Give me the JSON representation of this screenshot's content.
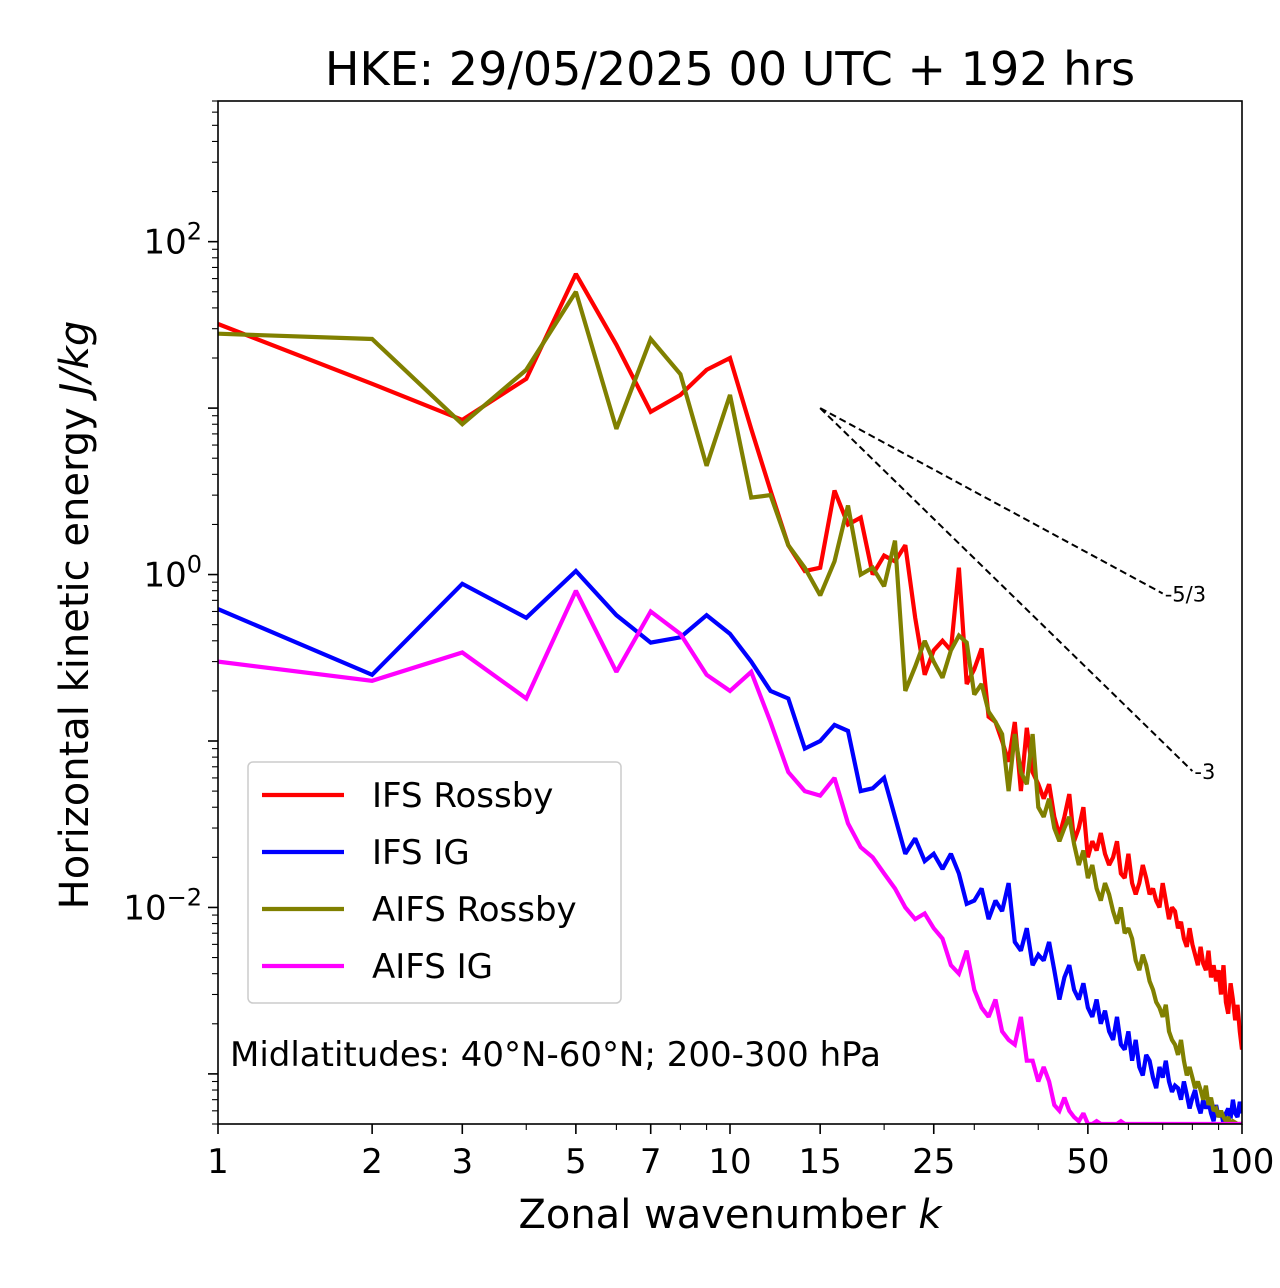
{
  "chart_data": {
    "type": "line",
    "title": "HKE: 29/05/2025 00 UTC + 192 hrs",
    "xlabel": "Zonal wavenumber",
    "xlabel_var": "k",
    "ylabel": "Horizontal kinetic energy",
    "ylabel_unit": "J/kg",
    "xscale": "log",
    "yscale": "log",
    "xlim": [
      1,
      100
    ],
    "ylim": [
      0.0005,
      700
    ],
    "x_ticks": [
      1,
      2,
      3,
      5,
      7,
      10,
      15,
      25,
      50,
      100
    ],
    "y_ticks": [
      {
        "value": 0.01,
        "base": "10",
        "exp": "−2"
      },
      {
        "value": 1,
        "base": "10",
        "exp": "0"
      },
      {
        "value": 100,
        "base": "10",
        "exp": "2"
      }
    ],
    "legend_position": "lower-left",
    "annotation": "Midlatitudes: 40°N-60°N; 200-300 hPa",
    "reference_slopes": [
      {
        "label": "-5/3",
        "x0": 15,
        "x1": 70,
        "y0": 10.0,
        "y1": 0.77,
        "style": "dashed"
      },
      {
        "label": "-3",
        "x0": 15,
        "x1": 80,
        "y0": 10.0,
        "y1": 0.066,
        "style": "dashed"
      }
    ],
    "series": [
      {
        "name": "IFS Rossby",
        "color": "#ff0000",
        "x": [
          1,
          2,
          3,
          4,
          5,
          6,
          7,
          8,
          9,
          10,
          11,
          12,
          13,
          14,
          15,
          16,
          17,
          18,
          19,
          20,
          21,
          22,
          23,
          24,
          25,
          26,
          27,
          28,
          29,
          30,
          31,
          32,
          33,
          34,
          35,
          36,
          37,
          38,
          39,
          40,
          41,
          42,
          43,
          44,
          45,
          46,
          47,
          48,
          49,
          50,
          51,
          52,
          53,
          54,
          55,
          56,
          57,
          58,
          59,
          60,
          61,
          62,
          63,
          64,
          65,
          66,
          67,
          68,
          69,
          70,
          71,
          72,
          73,
          74,
          75,
          76,
          77,
          78,
          79,
          80,
          81,
          82,
          83,
          84,
          85,
          86,
          87,
          88,
          89,
          90,
          91,
          92,
          93,
          94,
          95,
          96,
          97,
          98,
          99,
          100
        ],
        "y": [
          32,
          14,
          8.5,
          15,
          64,
          24,
          9.5,
          12,
          17,
          20,
          7.5,
          3.2,
          1.5,
          1.05,
          1.1,
          3.2,
          2.0,
          2.2,
          1.0,
          1.3,
          1.2,
          1.5,
          0.55,
          0.25,
          0.35,
          0.4,
          0.35,
          1.1,
          0.22,
          0.27,
          0.36,
          0.14,
          0.13,
          0.1,
          0.075,
          0.13,
          0.05,
          0.12,
          0.065,
          0.055,
          0.045,
          0.055,
          0.035,
          0.027,
          0.035,
          0.048,
          0.025,
          0.03,
          0.04,
          0.02,
          0.025,
          0.022,
          0.028,
          0.021,
          0.018,
          0.02,
          0.025,
          0.016,
          0.015,
          0.021,
          0.014,
          0.012,
          0.014,
          0.018,
          0.015,
          0.012,
          0.013,
          0.011,
          0.01,
          0.014,
          0.011,
          0.0085,
          0.01,
          0.0095,
          0.0075,
          0.0082,
          0.0065,
          0.0058,
          0.0075,
          0.006,
          0.0052,
          0.0045,
          0.0058,
          0.0046,
          0.0042,
          0.0055,
          0.0038,
          0.0045,
          0.0036,
          0.0042,
          0.003,
          0.0045,
          0.0027,
          0.0023,
          0.0035,
          0.0028,
          0.0021,
          0.0026,
          0.0018,
          0.0014
        ]
      },
      {
        "name": "IFS IG",
        "color": "#0000ff",
        "x": [
          1,
          2,
          3,
          4,
          5,
          6,
          7,
          8,
          9,
          10,
          11,
          12,
          13,
          14,
          15,
          16,
          17,
          18,
          19,
          20,
          21,
          22,
          23,
          24,
          25,
          26,
          27,
          28,
          29,
          30,
          31,
          32,
          33,
          34,
          35,
          36,
          37,
          38,
          39,
          40,
          41,
          42,
          43,
          44,
          45,
          46,
          47,
          48,
          49,
          50,
          51,
          52,
          53,
          54,
          55,
          56,
          57,
          58,
          59,
          60,
          61,
          62,
          63,
          64,
          65,
          66,
          67,
          68,
          69,
          70,
          71,
          72,
          73,
          74,
          75,
          76,
          77,
          78,
          79,
          80,
          81,
          82,
          83,
          84,
          85,
          86,
          87,
          88,
          89,
          90,
          91,
          92,
          93,
          94,
          95,
          96,
          97,
          98,
          99,
          100
        ],
        "y": [
          0.62,
          0.25,
          0.88,
          0.55,
          1.05,
          0.57,
          0.39,
          0.42,
          0.57,
          0.44,
          0.3,
          0.2,
          0.18,
          0.09,
          0.1,
          0.125,
          0.115,
          0.05,
          0.052,
          0.06,
          0.035,
          0.021,
          0.026,
          0.019,
          0.021,
          0.017,
          0.021,
          0.016,
          0.0105,
          0.011,
          0.013,
          0.0085,
          0.011,
          0.0095,
          0.014,
          0.0062,
          0.0055,
          0.0075,
          0.0045,
          0.0052,
          0.0048,
          0.0062,
          0.0042,
          0.0028,
          0.0038,
          0.0045,
          0.0032,
          0.0028,
          0.0035,
          0.0025,
          0.0022,
          0.0028,
          0.002,
          0.0024,
          0.0018,
          0.0016,
          0.0022,
          0.0015,
          0.0014,
          0.0018,
          0.0012,
          0.0016,
          0.0011,
          0.00098,
          0.0013,
          0.0012,
          0.00095,
          0.00082,
          0.0011,
          0.00095,
          0.0012,
          0.0009,
          0.00078,
          0.00085,
          0.00082,
          0.0007,
          0.0009,
          0.00075,
          0.00062,
          0.00072,
          0.0008,
          0.00065,
          0.00058,
          0.0007,
          0.00062,
          0.00068,
          0.00058,
          0.00052,
          0.00065,
          0.00055,
          0.0006,
          0.0005,
          0.00058,
          0.00062,
          0.00054,
          0.0007,
          0.00058,
          0.00055,
          0.00068,
          0.00058
        ]
      },
      {
        "name": "AIFS Rossby",
        "color": "#808000",
        "x": [
          1,
          2,
          3,
          4,
          5,
          6,
          7,
          8,
          9,
          10,
          11,
          12,
          13,
          14,
          15,
          16,
          17,
          18,
          19,
          20,
          21,
          22,
          23,
          24,
          25,
          26,
          27,
          28,
          29,
          30,
          31,
          32,
          33,
          34,
          35,
          36,
          37,
          38,
          39,
          40,
          41,
          42,
          43,
          44,
          45,
          46,
          47,
          48,
          49,
          50,
          51,
          52,
          53,
          54,
          55,
          56,
          57,
          58,
          59,
          60,
          61,
          62,
          63,
          64,
          65,
          66,
          67,
          68,
          69,
          70,
          71,
          72,
          73,
          74,
          75,
          76,
          77,
          78,
          79,
          80,
          81,
          82,
          83,
          84,
          85,
          86,
          87,
          88,
          89,
          90,
          91,
          92,
          93,
          94,
          95,
          96,
          97,
          98,
          99,
          100
        ],
        "y": [
          28,
          26,
          8.0,
          17,
          50,
          7.5,
          26,
          16,
          4.5,
          12,
          2.9,
          3.0,
          1.5,
          1.1,
          0.75,
          1.2,
          2.6,
          1.0,
          1.1,
          0.85,
          1.6,
          0.2,
          0.28,
          0.4,
          0.3,
          0.24,
          0.35,
          0.43,
          0.39,
          0.19,
          0.22,
          0.15,
          0.13,
          0.11,
          0.05,
          0.11,
          0.065,
          0.055,
          0.11,
          0.04,
          0.035,
          0.045,
          0.03,
          0.025,
          0.03,
          0.035,
          0.024,
          0.018,
          0.022,
          0.015,
          0.018,
          0.013,
          0.011,
          0.014,
          0.012,
          0.0095,
          0.008,
          0.01,
          0.007,
          0.0075,
          0.0065,
          0.0048,
          0.0042,
          0.0052,
          0.0045,
          0.0036,
          0.0032,
          0.0027,
          0.0025,
          0.0022,
          0.0026,
          0.0018,
          0.0016,
          0.0015,
          0.0013,
          0.0016,
          0.0012,
          0.00098,
          0.0011,
          0.00095,
          0.00082,
          0.0009,
          0.0008,
          0.0007,
          0.00085,
          0.00065,
          0.00072,
          0.0006,
          0.00062,
          0.00055,
          0.0006,
          0.00055,
          0.00052,
          0.00055,
          0.0005,
          0.00052,
          0.00051,
          0.0005,
          0.0005,
          0.0005
        ]
      },
      {
        "name": "AIFS IG",
        "color": "#ff00ff",
        "x": [
          1,
          2,
          3,
          4,
          5,
          6,
          7,
          8,
          9,
          10,
          11,
          12,
          13,
          14,
          15,
          16,
          17,
          18,
          19,
          20,
          21,
          22,
          23,
          24,
          25,
          26,
          27,
          28,
          29,
          30,
          31,
          32,
          33,
          34,
          35,
          36,
          37,
          38,
          39,
          40,
          41,
          42,
          43,
          44,
          45,
          46,
          47,
          48,
          49,
          50,
          51,
          52,
          53,
          54,
          55,
          56,
          57,
          58,
          59,
          60,
          61,
          62,
          63,
          64,
          65,
          66,
          67,
          68,
          69,
          70,
          71,
          72,
          73,
          74,
          75,
          76,
          77,
          78,
          79,
          80,
          81,
          82,
          83,
          84,
          85,
          86,
          87,
          88,
          89,
          90,
          91,
          92,
          93,
          94,
          95,
          96,
          97,
          98,
          99,
          100
        ],
        "y": [
          0.3,
          0.23,
          0.34,
          0.18,
          0.8,
          0.26,
          0.6,
          0.44,
          0.25,
          0.2,
          0.26,
          0.13,
          0.065,
          0.05,
          0.047,
          0.06,
          0.032,
          0.023,
          0.02,
          0.016,
          0.013,
          0.01,
          0.0085,
          0.0092,
          0.0075,
          0.0065,
          0.0045,
          0.004,
          0.0055,
          0.0032,
          0.0025,
          0.0022,
          0.0028,
          0.0018,
          0.0016,
          0.0015,
          0.0022,
          0.0012,
          0.0012,
          0.0009,
          0.0011,
          0.0009,
          0.00065,
          0.0006,
          0.00072,
          0.0006,
          0.00055,
          0.00052,
          0.00058,
          0.0005,
          0.0005,
          0.00052,
          0.0005,
          0.0005,
          0.0005,
          0.0005,
          0.0005,
          0.00052,
          0.0005,
          0.0005,
          0.0005,
          0.0005,
          0.0005,
          0.0005,
          0.0005,
          0.0005,
          0.0005,
          0.0005,
          0.0005,
          0.0005,
          0.0005,
          0.0005,
          0.0005,
          0.0005,
          0.0005,
          0.0005,
          0.0005,
          0.0005,
          0.0005,
          0.0005,
          0.0005,
          0.0005,
          0.0005,
          0.0005,
          0.0005,
          0.0005,
          0.0005,
          0.0005,
          0.0005,
          0.0005,
          0.0005,
          0.0005,
          0.0005,
          0.0005,
          0.0005,
          0.0005,
          0.0005,
          0.0005,
          0.0005,
          0.0005
        ]
      }
    ]
  }
}
